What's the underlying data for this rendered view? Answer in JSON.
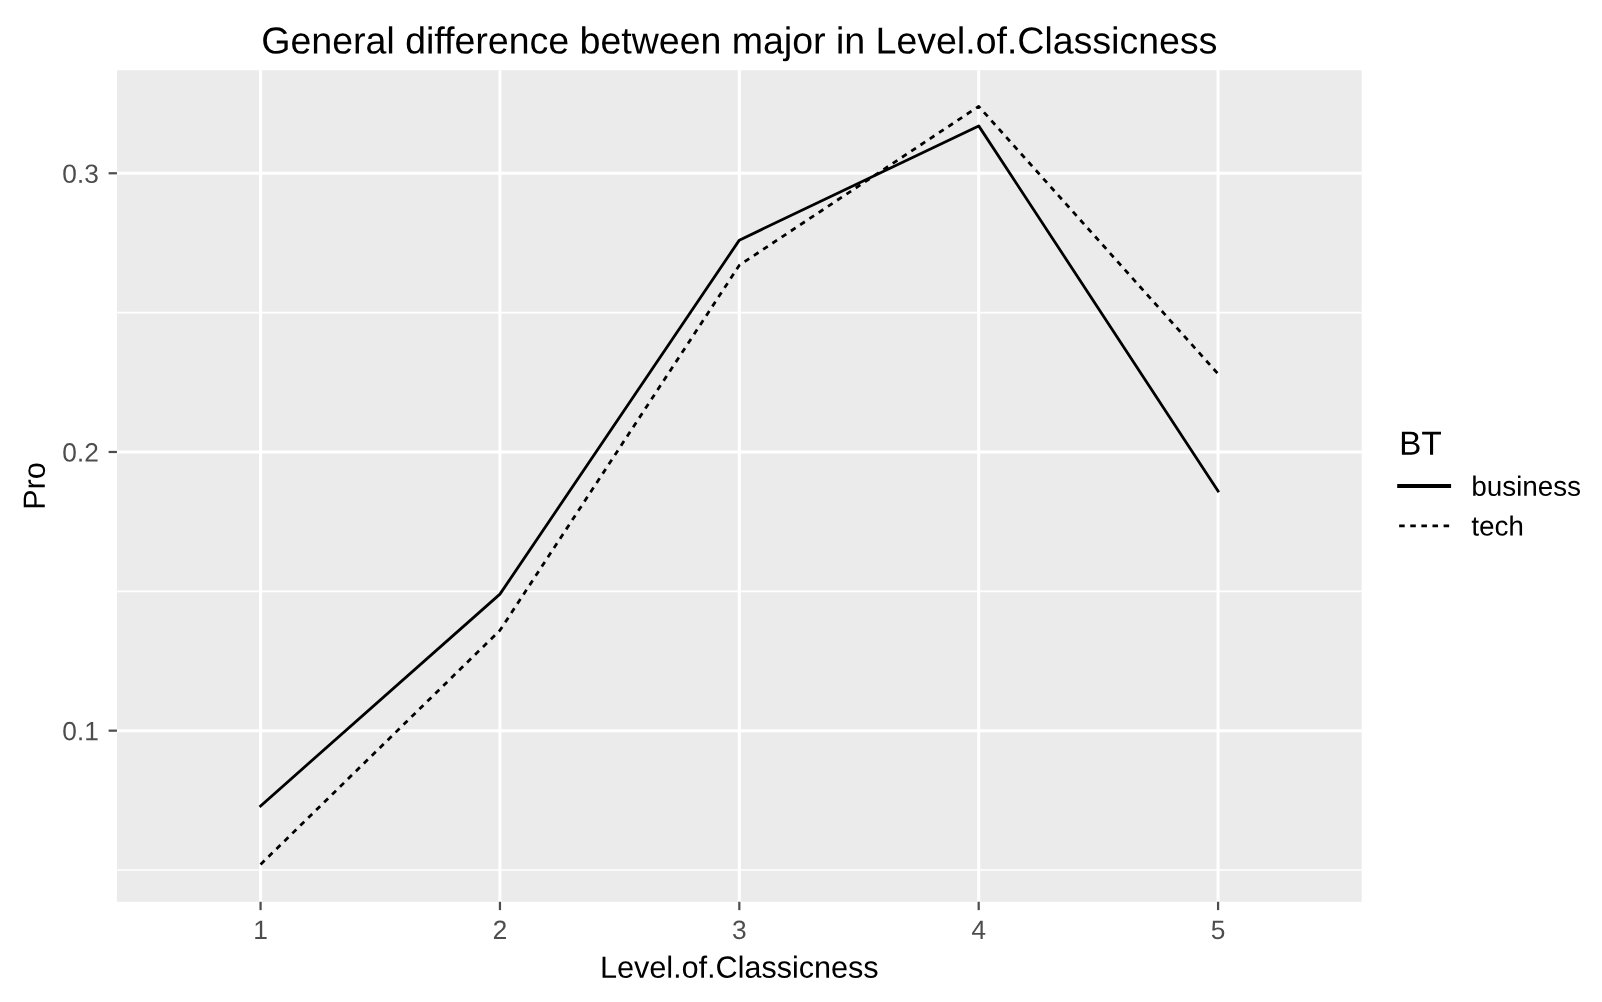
{
  "chart_data": {
    "type": "line",
    "title": "General difference between major in Level.of.Classicness",
    "xlabel": "Level.of.Classicness",
    "ylabel": "Pro",
    "legend_title": "BT",
    "x": [
      1,
      2,
      3,
      4,
      5
    ],
    "series": [
      {
        "name": "business",
        "color": "#000000",
        "line_style": "solid",
        "values": [
          0.073,
          0.149,
          0.276,
          0.317,
          0.186
        ]
      },
      {
        "name": "tech",
        "color": "#000000",
        "line_style": "dotted",
        "values": [
          0.052,
          0.136,
          0.267,
          0.324,
          0.228
        ]
      }
    ],
    "xlim": [
      0.4,
      5.6
    ],
    "ylim": [
      0.0386,
      0.337
    ],
    "xticks": [
      1,
      2,
      3,
      4,
      5
    ],
    "yticks": [
      0.1,
      0.2,
      0.3
    ],
    "grid": true,
    "legend": "right"
  }
}
